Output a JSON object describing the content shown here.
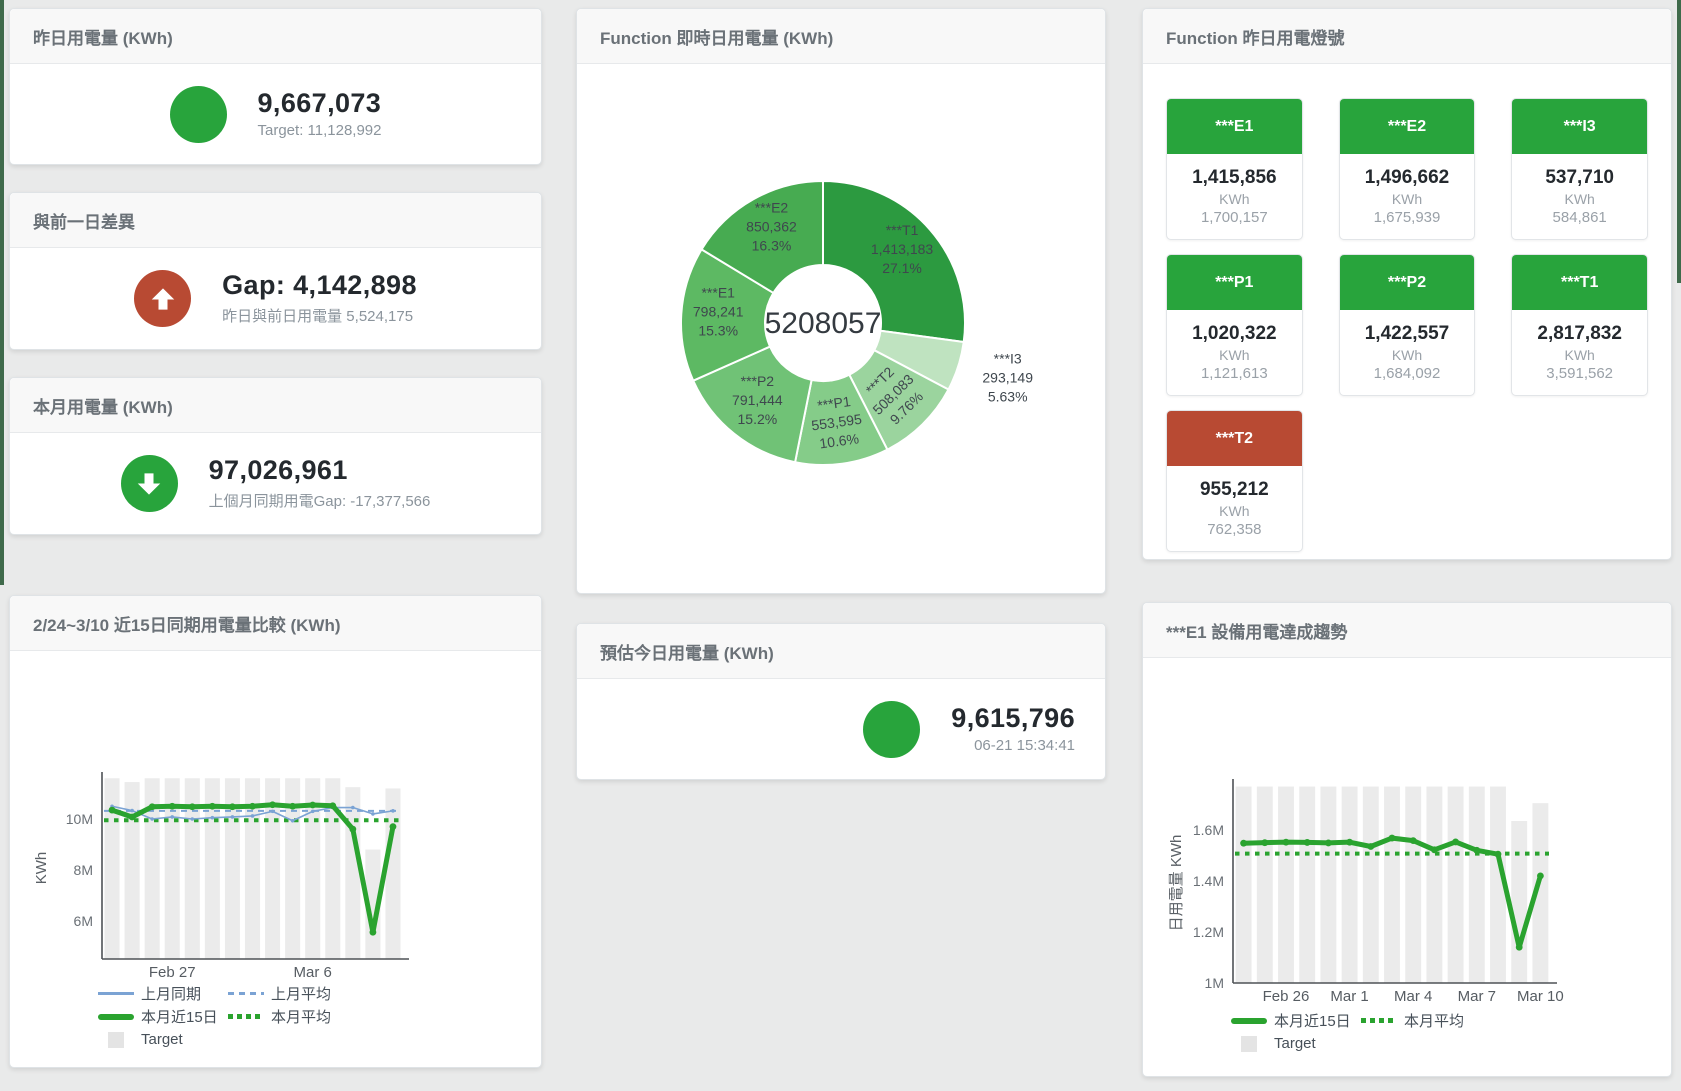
{
  "colors": {
    "accent_green": "#28a43c",
    "accent_red": "#b84a33",
    "blue_line": "#7ba3d4",
    "green_line": "#2aa32f",
    "bar_gray": "#ebebeb",
    "header_text": "#6a7177",
    "value_text": "#24292e",
    "muted_text": "#8b949c"
  },
  "cards": {
    "yesterday": {
      "title": "昨日用電量 (KWh)",
      "value": "9,667,073",
      "subtitle": "Target: 11,128,992"
    },
    "day_gap": {
      "title": "與前一日差異",
      "value": "Gap: 4,142,898",
      "subtitle": "昨日與前日用電量 5,524,175"
    },
    "month": {
      "title": "本月用電量 (KWh)",
      "value": "97,026,961",
      "subtitle": "上個月同期用電Gap: -17,377,566"
    },
    "estimate": {
      "title": "預估今日用電量 (KWh)",
      "value": "9,615,796",
      "subtitle": "06-21 15:34:41"
    },
    "realtime": {
      "title": "Function 即時日用電量 (KWh)",
      "center_total": "5208057"
    },
    "lights": {
      "title": "Function 昨日用電燈號",
      "tiles": [
        {
          "label": "***E1",
          "value": "1,415,856",
          "unit": "KWh",
          "target": "1,700,157",
          "status": "green"
        },
        {
          "label": "***E2",
          "value": "1,496,662",
          "unit": "KWh",
          "target": "1,675,939",
          "status": "green"
        },
        {
          "label": "***I3",
          "value": "537,710",
          "unit": "KWh",
          "target": "584,861",
          "status": "green"
        },
        {
          "label": "***P1",
          "value": "1,020,322",
          "unit": "KWh",
          "target": "1,121,613",
          "status": "green"
        },
        {
          "label": "***P2",
          "value": "1,422,557",
          "unit": "KWh",
          "target": "1,684,092",
          "status": "green"
        },
        {
          "label": "***T1",
          "value": "2,817,832",
          "unit": "KWh",
          "target": "3,591,562",
          "status": "green"
        },
        {
          "label": "***T2",
          "value": "955,212",
          "unit": "KWh",
          "target": "762,358",
          "status": "red"
        }
      ]
    },
    "compare": {
      "title": "2/24~3/10 近15日同期用電量比較 (KWh)"
    },
    "e1_trend": {
      "title": "***E1 設備用電達成趨勢"
    }
  },
  "chart_data": [
    {
      "id": "realtime-donut",
      "type": "pie",
      "title": "Function 即時日用電量 (KWh)",
      "center_total": "5208057",
      "slices": [
        {
          "name": "***T1",
          "value": 1413183,
          "value_label": "1,413,183",
          "pct_label": "27.1%",
          "color": "#2c9a40"
        },
        {
          "name": "***I3",
          "value": 293149,
          "value_label": "293,149",
          "pct_label": "5.63%",
          "color": "#bfe3c0"
        },
        {
          "name": "***T2",
          "value": 508083,
          "value_label": "508,083",
          "pct_label": "9.76%",
          "color": "#9bd49e"
        },
        {
          "name": "***P1",
          "value": 553595,
          "value_label": "553,595",
          "pct_label": "10.6%",
          "color": "#85cc89"
        },
        {
          "name": "***P2",
          "value": 791444,
          "value_label": "791,444",
          "pct_label": "15.2%",
          "color": "#70c276"
        },
        {
          "name": "***E1",
          "value": 798241,
          "value_label": "798,241",
          "pct_label": "15.3%",
          "color": "#5db963"
        },
        {
          "name": "***E2",
          "value": 850362,
          "value_label": "850,362",
          "pct_label": "16.3%",
          "color": "#47ab51"
        }
      ]
    },
    {
      "id": "compare",
      "type": "bar",
      "title": "2/24~3/10 近15日同期用電量比較 (KWh)",
      "ylabel": "KWh",
      "ymin": 4500000,
      "ymax": 11650000,
      "yticks": [
        {
          "value": 6000000,
          "label": "6M"
        },
        {
          "value": 8000000,
          "label": "8M"
        },
        {
          "value": 10000000,
          "label": "10M"
        }
      ],
      "x": [
        "2/24",
        "2/25",
        "2/26",
        "2/27",
        "2/28",
        "3/1",
        "3/2",
        "3/3",
        "3/4",
        "3/5",
        "3/6",
        "3/7",
        "3/8",
        "3/9",
        "3/10"
      ],
      "x_ticks": [
        {
          "index": 3,
          "label": "Feb 27"
        },
        {
          "index": 10,
          "label": "Mar 6"
        }
      ],
      "series": [
        {
          "name": "Target",
          "type": "bar",
          "color": "#ebebeb",
          "values": [
            11600000,
            11450000,
            11600000,
            11600000,
            11600000,
            11600000,
            11600000,
            11600000,
            11600000,
            11600000,
            11600000,
            11600000,
            11250000,
            8800000,
            11200000
          ]
        },
        {
          "name": "上月同期",
          "type": "line",
          "color": "#7ba3d4",
          "values": [
            10500000,
            10330000,
            10000000,
            10080000,
            10000000,
            10050000,
            10080000,
            10120000,
            10300000,
            9930000,
            10300000,
            10450000,
            10450000,
            10200000,
            10320000
          ]
        },
        {
          "name": "上月平均",
          "type": "dashed",
          "color": "#7ba3d4",
          "values": 10320000
        },
        {
          "name": "本月近15日",
          "type": "thick-line",
          "color": "#2aa32f",
          "values": [
            10350000,
            10080000,
            10480000,
            10500000,
            10480000,
            10500000,
            10480000,
            10500000,
            10560000,
            10500000,
            10550000,
            10520000,
            9600000,
            5550000,
            9700000
          ]
        },
        {
          "name": "本月平均",
          "type": "dotted",
          "color": "#2aa32f",
          "values": 9950000
        }
      ],
      "legend_rows": [
        [
          "上月同期",
          "上月平均"
        ],
        [
          "本月近15日",
          "本月平均"
        ],
        [
          "Target"
        ]
      ]
    },
    {
      "id": "e1",
      "type": "bar",
      "title": "***E1 設備用電達成趨勢",
      "ylabel": "日用電量 KWh",
      "ymin": 1000000,
      "ymax": 1780000,
      "yticks": [
        {
          "value": 1000000,
          "label": "1M"
        },
        {
          "value": 1200000,
          "label": "1.2M"
        },
        {
          "value": 1400000,
          "label": "1.4M"
        },
        {
          "value": 1600000,
          "label": "1.6M"
        }
      ],
      "x": [
        "2/24",
        "2/25",
        "2/26",
        "2/27",
        "2/28",
        "3/1",
        "3/2",
        "3/3",
        "3/4",
        "3/5",
        "3/6",
        "3/7",
        "3/8",
        "3/9",
        "3/10"
      ],
      "x_ticks": [
        {
          "index": 2,
          "label": "Feb 26"
        },
        {
          "index": 5,
          "label": "Mar 1"
        },
        {
          "index": 8,
          "label": "Mar 4"
        },
        {
          "index": 11,
          "label": "Mar 7"
        },
        {
          "index": 14,
          "label": "Mar 10"
        }
      ],
      "series": [
        {
          "name": "Target",
          "type": "bar",
          "color": "#ebebeb",
          "values": [
            1770000,
            1770000,
            1770000,
            1770000,
            1770000,
            1770000,
            1770000,
            1770000,
            1770000,
            1770000,
            1770000,
            1770000,
            1770000,
            1635000,
            1705000
          ]
        },
        {
          "name": "本月近15日",
          "type": "thick-line",
          "color": "#2aa32f",
          "values": [
            1548000,
            1550000,
            1552000,
            1551000,
            1549000,
            1552000,
            1535000,
            1568000,
            1558000,
            1522000,
            1553000,
            1520000,
            1505000,
            1140000,
            1420000
          ]
        },
        {
          "name": "本月平均",
          "type": "dotted",
          "color": "#2aa32f",
          "values": 1507000
        }
      ],
      "legend_rows": [
        [
          "本月近15日",
          "本月平均"
        ],
        [
          "Target"
        ]
      ]
    }
  ]
}
